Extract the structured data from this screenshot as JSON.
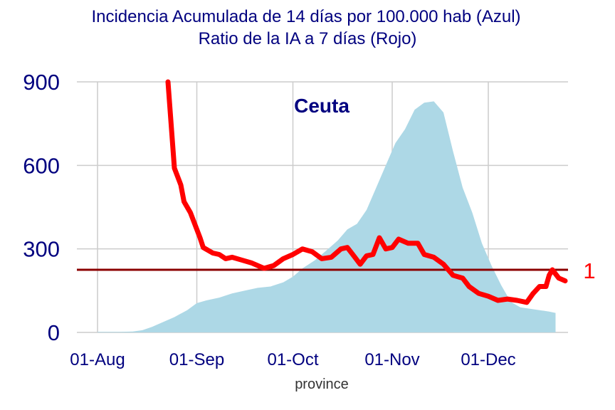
{
  "chart_data": {
    "type": "area",
    "title": "Incidencia Acumulada de 14 días por 100.000 hab (Azul)",
    "subtitle": "Ratio de la IA a 7 días (Rojo)",
    "panel_label": "Ceuta",
    "xlabel": "province",
    "ylabel": "",
    "x_start": "2020-08-01",
    "ylim": [
      0,
      900
    ],
    "yticks": [
      0,
      300,
      600,
      900
    ],
    "ytick_labels": [
      "0",
      "300",
      "600",
      "900"
    ],
    "xticks": [
      "2020-08-01",
      "2020-09-01",
      "2020-10-01",
      "2020-11-01",
      "2020-12-01"
    ],
    "xtick_labels": [
      "01-Aug",
      "01-Sep",
      "01-Oct",
      "01-Nov",
      "01-Dec"
    ],
    "grid": true,
    "reference_line": {
      "y": 225,
      "label": "1",
      "color": "#8b0000"
    },
    "colors": {
      "area": "#add8e6",
      "ratio": "#ff0000",
      "text": "#00007f",
      "grid": "#cccccc"
    },
    "series": [
      {
        "type": "area",
        "color": "#add8e6",
        "points": [
          [
            "2020-08-01",
            2
          ],
          [
            "2020-08-08",
            2
          ],
          [
            "2020-08-12",
            3
          ],
          [
            "2020-08-15",
            8
          ],
          [
            "2020-08-18",
            20
          ],
          [
            "2020-08-22",
            40
          ],
          [
            "2020-08-25",
            55
          ],
          [
            "2020-08-29",
            80
          ],
          [
            "2020-09-01",
            105
          ],
          [
            "2020-09-04",
            115
          ],
          [
            "2020-09-08",
            125
          ],
          [
            "2020-09-12",
            140
          ],
          [
            "2020-09-16",
            150
          ],
          [
            "2020-09-20",
            160
          ],
          [
            "2020-09-24",
            165
          ],
          [
            "2020-09-28",
            180
          ],
          [
            "2020-10-01",
            200
          ],
          [
            "2020-10-04",
            230
          ],
          [
            "2020-10-08",
            260
          ],
          [
            "2020-10-12",
            300
          ],
          [
            "2020-10-15",
            330
          ],
          [
            "2020-10-18",
            370
          ],
          [
            "2020-10-21",
            390
          ],
          [
            "2020-10-24",
            440
          ],
          [
            "2020-10-27",
            520
          ],
          [
            "2020-10-30",
            600
          ],
          [
            "2020-11-02",
            680
          ],
          [
            "2020-11-05",
            730
          ],
          [
            "2020-11-08",
            800
          ],
          [
            "2020-11-11",
            825
          ],
          [
            "2020-11-14",
            830
          ],
          [
            "2020-11-17",
            790
          ],
          [
            "2020-11-20",
            650
          ],
          [
            "2020-11-23",
            520
          ],
          [
            "2020-11-26",
            430
          ],
          [
            "2020-11-29",
            320
          ],
          [
            "2020-12-02",
            240
          ],
          [
            "2020-12-05",
            170
          ],
          [
            "2020-12-08",
            110
          ],
          [
            "2020-12-11",
            90
          ],
          [
            "2020-12-14",
            85
          ],
          [
            "2020-12-17",
            80
          ],
          [
            "2020-12-20",
            75
          ],
          [
            "2020-12-22",
            70
          ]
        ]
      },
      {
        "type": "line",
        "color": "#ff0000",
        "points": [
          [
            "2020-08-23",
            900
          ],
          [
            "2020-08-25",
            590
          ],
          [
            "2020-08-27",
            530
          ],
          [
            "2020-08-28",
            470
          ],
          [
            "2020-08-30",
            430
          ],
          [
            "2020-09-01",
            370
          ],
          [
            "2020-09-02",
            340
          ],
          [
            "2020-09-03",
            305
          ],
          [
            "2020-09-06",
            285
          ],
          [
            "2020-09-08",
            280
          ],
          [
            "2020-09-10",
            265
          ],
          [
            "2020-09-12",
            270
          ],
          [
            "2020-09-15",
            260
          ],
          [
            "2020-09-18",
            250
          ],
          [
            "2020-09-20",
            240
          ],
          [
            "2020-09-22",
            230
          ],
          [
            "2020-09-25",
            240
          ],
          [
            "2020-09-28",
            265
          ],
          [
            "2020-10-01",
            280
          ],
          [
            "2020-10-04",
            300
          ],
          [
            "2020-10-07",
            290
          ],
          [
            "2020-10-10",
            265
          ],
          [
            "2020-10-13",
            270
          ],
          [
            "2020-10-16",
            300
          ],
          [
            "2020-10-18",
            305
          ],
          [
            "2020-10-20",
            275
          ],
          [
            "2020-10-22",
            245
          ],
          [
            "2020-10-24",
            275
          ],
          [
            "2020-10-26",
            280
          ],
          [
            "2020-10-28",
            340
          ],
          [
            "2020-10-30",
            300
          ],
          [
            "2020-11-01",
            305
          ],
          [
            "2020-11-03",
            335
          ],
          [
            "2020-11-06",
            320
          ],
          [
            "2020-11-09",
            320
          ],
          [
            "2020-11-11",
            280
          ],
          [
            "2020-11-14",
            270
          ],
          [
            "2020-11-17",
            245
          ],
          [
            "2020-11-20",
            205
          ],
          [
            "2020-11-23",
            195
          ],
          [
            "2020-11-25",
            165
          ],
          [
            "2020-11-28",
            140
          ],
          [
            "2020-12-01",
            130
          ],
          [
            "2020-12-04",
            115
          ],
          [
            "2020-12-07",
            120
          ],
          [
            "2020-12-10",
            115
          ],
          [
            "2020-12-13",
            108
          ],
          [
            "2020-12-15",
            140
          ],
          [
            "2020-12-17",
            165
          ],
          [
            "2020-12-19",
            165
          ],
          [
            "2020-12-20",
            205
          ],
          [
            "2020-12-21",
            225
          ],
          [
            "2020-12-22",
            210
          ],
          [
            "2020-12-23",
            195
          ],
          [
            "2020-12-25",
            185
          ]
        ]
      }
    ]
  }
}
